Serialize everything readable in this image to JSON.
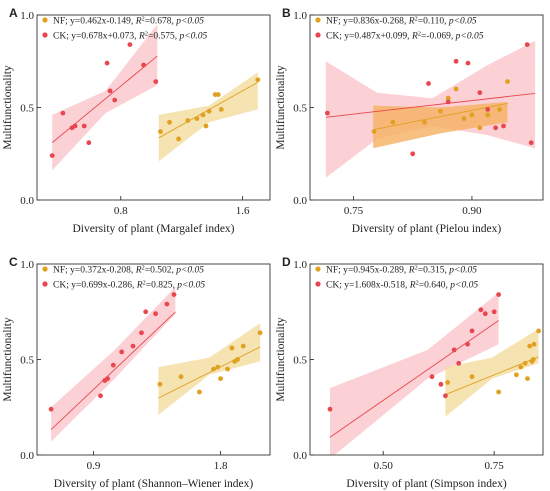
{
  "chart_data": [
    {
      "type": "scatter",
      "panel_label": "A",
      "xlabel": "Diversity of plant (Margalef index)",
      "ylabel": "Multifunctionality",
      "xlim": [
        0.25,
        1.78
      ],
      "ylim": [
        0.0,
        1.0
      ],
      "xticks": [
        {
          "v": 0.8,
          "label": "0.8"
        },
        {
          "v": 1.6,
          "label": "1.6"
        }
      ],
      "yticks": [
        {
          "v": 0.0,
          "label": "0.0"
        },
        {
          "v": 0.5,
          "label": "0.5"
        },
        {
          "v": 1.0,
          "label": "1.0"
        }
      ],
      "series": [
        {
          "name": "NF",
          "equation": "y=0.462x-0.149",
          "r2_value": "0.678",
          "p_value": "p<0.05",
          "color": "#E2A020",
          "band_color": "#F2DC9E",
          "fit": {
            "x0": 1.05,
            "x1": 1.7
          },
          "band": [
            {
              "x": 1.05,
              "lo": 0.21,
              "hi": 0.46
            },
            {
              "x": 1.38,
              "lo": 0.42,
              "hi": 0.51
            },
            {
              "x": 1.7,
              "lo": 0.49,
              "hi": 0.69
            }
          ],
          "points": [
            [
              1.06,
              0.37
            ],
            [
              1.12,
              0.42
            ],
            [
              1.18,
              0.33
            ],
            [
              1.24,
              0.43
            ],
            [
              1.3,
              0.44
            ],
            [
              1.34,
              0.46
            ],
            [
              1.36,
              0.4
            ],
            [
              1.38,
              0.48
            ],
            [
              1.42,
              0.57
            ],
            [
              1.44,
              0.57
            ],
            [
              1.46,
              0.49
            ],
            [
              1.7,
              0.65
            ]
          ]
        },
        {
          "name": "CK",
          "equation": "y=0.678x+0.073",
          "r2_value": "0.575",
          "p_value": "p<0.05",
          "color": "#E8474F",
          "band_color": "#FBC6CB",
          "fit": {
            "x0": 0.35,
            "x1": 1.04
          },
          "band": [
            {
              "x": 0.35,
              "lo": 0.16,
              "hi": 0.46
            },
            {
              "x": 0.7,
              "lo": 0.47,
              "hi": 0.59
            },
            {
              "x": 1.04,
              "lo": 0.62,
              "hi": 0.95
            }
          ],
          "points": [
            [
              0.35,
              0.24
            ],
            [
              0.42,
              0.47
            ],
            [
              0.48,
              0.39
            ],
            [
              0.5,
              0.4
            ],
            [
              0.56,
              0.4
            ],
            [
              0.59,
              0.31
            ],
            [
              0.71,
              0.74
            ],
            [
              0.73,
              0.59
            ],
            [
              0.76,
              0.54
            ],
            [
              0.86,
              0.84
            ],
            [
              0.95,
              0.73
            ],
            [
              1.03,
              0.64
            ]
          ]
        }
      ]
    },
    {
      "type": "scatter",
      "panel_label": "B",
      "xlabel": "Diversity of plant (Pielou index)",
      "ylabel": "Multifunctionality",
      "xlim": [
        0.695,
        0.99
      ],
      "ylim": [
        0.0,
        1.0
      ],
      "xticks": [
        {
          "v": 0.75,
          "label": "0.75"
        },
        {
          "v": 0.9,
          "label": "0.90"
        }
      ],
      "yticks": [
        {
          "v": 0.0,
          "label": "0.0"
        },
        {
          "v": 0.5,
          "label": "0.5"
        },
        {
          "v": 1.0,
          "label": "1.0"
        }
      ],
      "series": [
        {
          "name": "NF",
          "equation": "y=0.836x-0.268",
          "r2_value": "0.110",
          "p_value": "p<0.05",
          "color": "#E2A020",
          "band_color": "#F5B060",
          "fit": {
            "x0": 0.775,
            "x1": 0.945
          },
          "band": [
            {
              "x": 0.775,
              "lo": 0.28,
              "hi": 0.51
            },
            {
              "x": 0.86,
              "lo": 0.36,
              "hi": 0.5
            },
            {
              "x": 0.945,
              "lo": 0.42,
              "hi": 0.53
            }
          ],
          "points": [
            [
              0.776,
              0.37
            ],
            [
              0.8,
              0.42
            ],
            [
              0.84,
              0.42
            ],
            [
              0.86,
              0.48
            ],
            [
              0.87,
              0.55
            ],
            [
              0.88,
              0.6
            ],
            [
              0.89,
              0.44
            ],
            [
              0.9,
              0.46
            ],
            [
              0.91,
              0.39
            ],
            [
              0.92,
              0.46
            ],
            [
              0.935,
              0.49
            ],
            [
              0.945,
              0.64
            ]
          ]
        },
        {
          "name": "CK",
          "equation": "y=0.487x+0.099",
          "r2_value": "-0.069",
          "p_value": "p<0.05",
          "color": "#E8474F",
          "band_color": "#FBC6CB",
          "fit": {
            "x0": 0.715,
            "x1": 0.98
          },
          "band": [
            {
              "x": 0.715,
              "lo": 0.12,
              "hi": 0.75
            },
            {
              "x": 0.78,
              "lo": 0.33,
              "hi": 0.58
            },
            {
              "x": 0.85,
              "lo": 0.4,
              "hi": 0.55
            },
            {
              "x": 0.92,
              "lo": 0.35,
              "hi": 0.73
            },
            {
              "x": 0.98,
              "lo": 0.28,
              "hi": 0.86
            }
          ],
          "points": [
            [
              0.717,
              0.47
            ],
            [
              0.825,
              0.25
            ],
            [
              0.845,
              0.63
            ],
            [
              0.87,
              0.53
            ],
            [
              0.88,
              0.75
            ],
            [
              0.895,
              0.74
            ],
            [
              0.91,
              0.58
            ],
            [
              0.92,
              0.49
            ],
            [
              0.93,
              0.39
            ],
            [
              0.94,
              0.4
            ],
            [
              0.97,
              0.84
            ],
            [
              0.975,
              0.31
            ]
          ]
        }
      ]
    },
    {
      "type": "scatter",
      "panel_label": "C",
      "xlabel": "Diversity of plant (Shannon–Wiener index)",
      "ylabel": "Multifunctionality",
      "xlim": [
        0.5,
        2.15
      ],
      "ylim": [
        0.0,
        1.0
      ],
      "xticks": [
        {
          "v": 0.9,
          "label": "0.9"
        },
        {
          "v": 1.8,
          "label": "1.8"
        }
      ],
      "yticks": [
        {
          "v": 0.0,
          "label": "0.0"
        },
        {
          "v": 0.5,
          "label": "0.5"
        },
        {
          "v": 1.0,
          "label": "1.0"
        }
      ],
      "series": [
        {
          "name": "NF",
          "equation": "y=0.372x-0.208",
          "r2_value": "0.502",
          "p_value": "p<0.05",
          "color": "#E2A020",
          "band_color": "#F2DC9E",
          "fit": {
            "x0": 1.36,
            "x1": 2.08
          },
          "band": [
            {
              "x": 1.36,
              "lo": 0.21,
              "hi": 0.46
            },
            {
              "x": 1.72,
              "lo": 0.42,
              "hi": 0.51
            },
            {
              "x": 2.08,
              "lo": 0.49,
              "hi": 0.69
            }
          ],
          "points": [
            [
              1.37,
              0.37
            ],
            [
              1.52,
              0.41
            ],
            [
              1.65,
              0.33
            ],
            [
              1.75,
              0.45
            ],
            [
              1.78,
              0.46
            ],
            [
              1.8,
              0.4
            ],
            [
              1.85,
              0.45
            ],
            [
              1.88,
              0.56
            ],
            [
              1.9,
              0.49
            ],
            [
              1.92,
              0.5
            ],
            [
              1.96,
              0.57
            ],
            [
              2.08,
              0.64
            ]
          ]
        },
        {
          "name": "CK",
          "equation": "y=0.699x-0.286",
          "r2_value": "0.825",
          "p_value": "p<0.05",
          "color": "#E8474F",
          "band_color": "#FBC6CB",
          "fit": {
            "x0": 0.6,
            "x1": 1.48
          },
          "band": [
            {
              "x": 0.6,
              "lo": 0.07,
              "hi": 0.25
            },
            {
              "x": 1.05,
              "lo": 0.4,
              "hi": 0.55
            },
            {
              "x": 1.48,
              "lo": 0.74,
              "hi": 0.88
            }
          ],
          "points": [
            [
              0.6,
              0.24
            ],
            [
              0.95,
              0.31
            ],
            [
              0.98,
              0.39
            ],
            [
              1.0,
              0.4
            ],
            [
              1.04,
              0.47
            ],
            [
              1.1,
              0.54
            ],
            [
              1.18,
              0.57
            ],
            [
              1.24,
              0.64
            ],
            [
              1.27,
              0.75
            ],
            [
              1.34,
              0.74
            ],
            [
              1.42,
              0.79
            ],
            [
              1.47,
              0.84
            ]
          ]
        }
      ]
    },
    {
      "type": "scatter",
      "panel_label": "D",
      "xlabel": "Diversity of plant (Simpson index)",
      "ylabel": "Multifunctionality",
      "xlim": [
        0.335,
        0.86
      ],
      "ylim": [
        0.0,
        1.0
      ],
      "xticks": [
        {
          "v": 0.5,
          "label": "0.50"
        },
        {
          "v": 0.75,
          "label": "0.75"
        }
      ],
      "yticks": [
        {
          "v": 0.0,
          "label": "0.0"
        },
        {
          "v": 0.5,
          "label": "0.5"
        },
        {
          "v": 1.0,
          "label": "1.0"
        }
      ],
      "series": [
        {
          "name": "NF",
          "equation": "y=0.945x-0.289",
          "r2_value": "0.315",
          "p_value": "p<0.05",
          "color": "#E2A020",
          "band_color": "#F2DC9E",
          "fit": {
            "x0": 0.64,
            "x1": 0.85
          },
          "band": [
            {
              "x": 0.64,
              "lo": 0.2,
              "hi": 0.46
            },
            {
              "x": 0.745,
              "lo": 0.4,
              "hi": 0.51
            },
            {
              "x": 0.85,
              "lo": 0.48,
              "hi": 0.66
            }
          ],
          "points": [
            [
              0.645,
              0.38
            ],
            [
              0.7,
              0.41
            ],
            [
              0.76,
              0.33
            ],
            [
              0.8,
              0.42
            ],
            [
              0.81,
              0.46
            ],
            [
              0.82,
              0.48
            ],
            [
              0.825,
              0.4
            ],
            [
              0.83,
              0.57
            ],
            [
              0.835,
              0.49
            ],
            [
              0.838,
              0.5
            ],
            [
              0.84,
              0.58
            ],
            [
              0.85,
              0.65
            ]
          ]
        },
        {
          "name": "CK",
          "equation": "y=1.608x-0.518",
          "r2_value": "0.640",
          "p_value": "p<0.05",
          "color": "#E8474F",
          "band_color": "#FBC6CB",
          "fit": {
            "x0": 0.38,
            "x1": 0.76
          },
          "band": [
            {
              "x": 0.38,
              "lo": -0.02,
              "hi": 0.35
            },
            {
              "x": 0.6,
              "lo": 0.4,
              "hi": 0.55
            },
            {
              "x": 0.76,
              "lo": 0.58,
              "hi": 0.85
            }
          ],
          "points": [
            [
              0.38,
              0.24
            ],
            [
              0.61,
              0.41
            ],
            [
              0.63,
              0.37
            ],
            [
              0.64,
              0.31
            ],
            [
              0.66,
              0.55
            ],
            [
              0.67,
              0.48
            ],
            [
              0.69,
              0.58
            ],
            [
              0.7,
              0.65
            ],
            [
              0.72,
              0.76
            ],
            [
              0.73,
              0.74
            ],
            [
              0.75,
              0.75
            ],
            [
              0.76,
              0.84
            ]
          ]
        }
      ]
    }
  ]
}
